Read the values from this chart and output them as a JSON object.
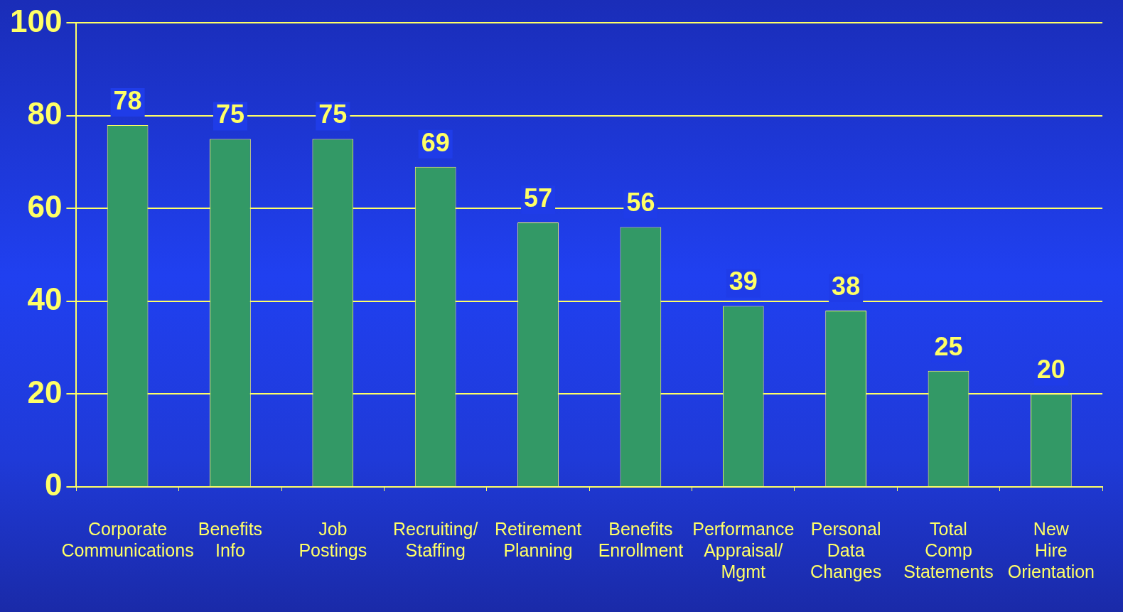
{
  "chart_data": {
    "type": "bar",
    "categories": [
      "Corporate Communications",
      "Benefits Info",
      "Job Postings",
      "Recruiting/ Staffing",
      "Retirement Planning",
      "Benefits Enrollment",
      "Performance Appraisal/ Mgmt",
      "Personal Data Changes",
      "Total Comp Statements",
      "New Hire Orientation"
    ],
    "values": [
      78,
      75,
      75,
      69,
      57,
      56,
      39,
      38,
      25,
      20
    ],
    "color": "#339966",
    "ylim": [
      0,
      100
    ],
    "yticks": [
      0,
      20,
      40,
      60,
      80,
      100
    ],
    "grid": "y",
    "data_labels": true,
    "legend": false
  }
}
